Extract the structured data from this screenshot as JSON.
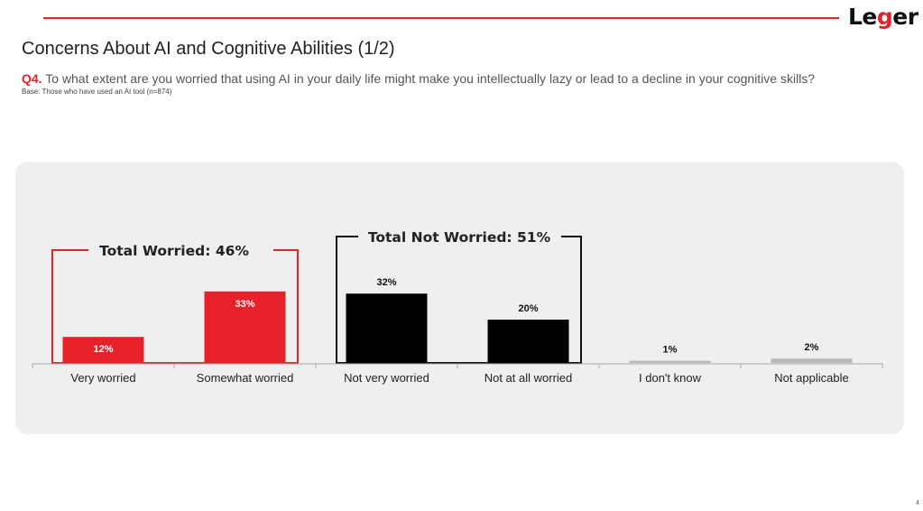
{
  "header": {
    "logo_text_pre": "Le",
    "logo_text_accent": "g",
    "logo_text_post": "er",
    "title": "Concerns About AI and Cognitive Abilities (1/2)",
    "question_number": "Q4.",
    "question_text": " To what extent are you worried that using AI in your daily life might make you intellectually lazy or lead to a decline in your cognitive skills?",
    "base": "Base: Those who have used an AI tool (n=874)"
  },
  "groups": {
    "worried_label": "Total Worried: 46%",
    "not_worried_label": "Total Not Worried: 51%"
  },
  "colors": {
    "accent": "#e8202a",
    "black": "#000000",
    "gray": "#b9b9b9"
  },
  "chart_data": {
    "type": "bar",
    "title": "",
    "xlabel": "",
    "ylabel": "",
    "ylim": [
      0,
      40
    ],
    "categories": [
      "Very worried",
      "Somewhat worried",
      "Not very worried",
      "Not at all worried",
      "I don't know",
      "Not applicable"
    ],
    "values": [
      12,
      33,
      32,
      20,
      1,
      2
    ],
    "value_labels": [
      "12%",
      "33%",
      "32%",
      "20%",
      "1%",
      "2%"
    ],
    "bar_colors": [
      "#e8202a",
      "#e8202a",
      "#000000",
      "#000000",
      "#b9b9b9",
      "#b9b9b9"
    ]
  },
  "page_number": "4"
}
